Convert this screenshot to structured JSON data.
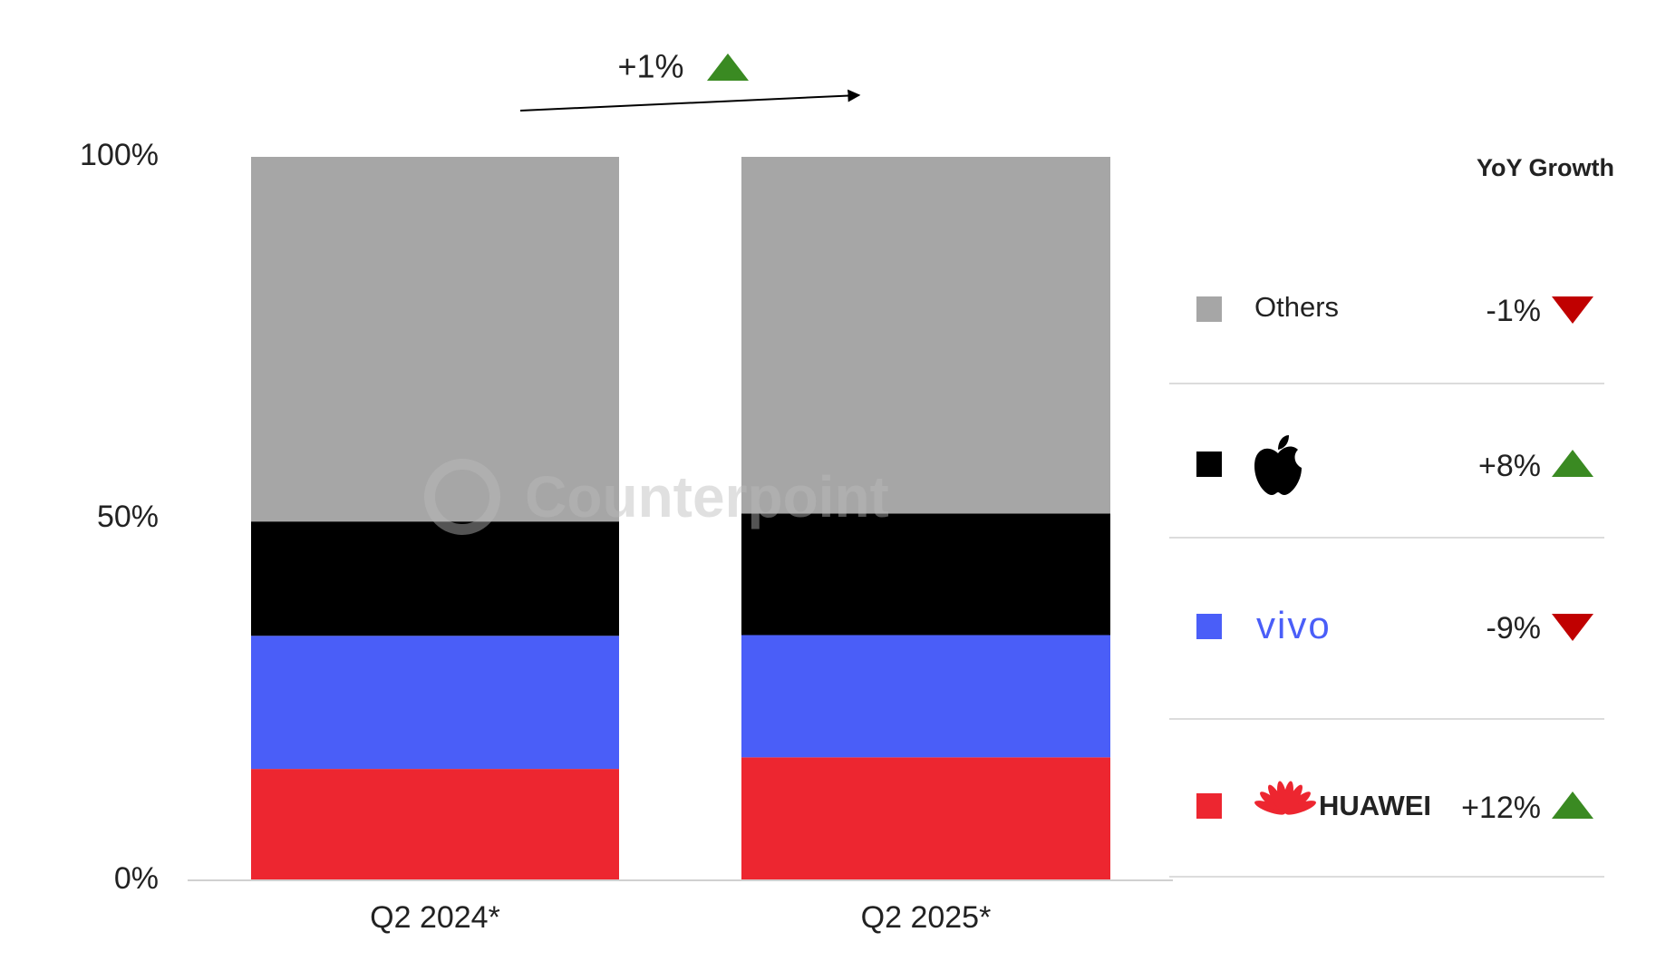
{
  "chart_data": {
    "type": "stacked_bar",
    "annotation": {
      "value": 1,
      "label": "+1%"
    },
    "watermark": "Counterpoint",
    "legend_title": "YoY Growth",
    "categories": [
      "Q2 2024*",
      "Q2 2025*"
    ],
    "ylim": [
      0,
      100
    ],
    "yticks": [
      {
        "value": 0,
        "label": "0%"
      },
      {
        "value": 50,
        "label": "50%"
      },
      {
        "value": 100,
        "label": "100%"
      }
    ],
    "series": [
      {
        "name": "HUAWEI",
        "color": "#ed2630",
        "values": [
          15.4,
          17.0
        ],
        "growth": {
          "value": 12,
          "label": "+12%"
        }
      },
      {
        "name": "vivo",
        "color": "#4a5ef8",
        "values": [
          18.4,
          16.9
        ],
        "growth": {
          "value": -9,
          "label": "-9%"
        }
      },
      {
        "color": "#000000",
        "values": [
          15.8,
          16.8
        ],
        "growth": {
          "value": 8,
          "label": "+8%"
        }
      },
      {
        "name": "Others",
        "color": "#a6a6a6",
        "values": [
          50.4,
          49.3
        ],
        "growth": {
          "value": -1,
          "label": "-1%"
        }
      }
    ]
  }
}
